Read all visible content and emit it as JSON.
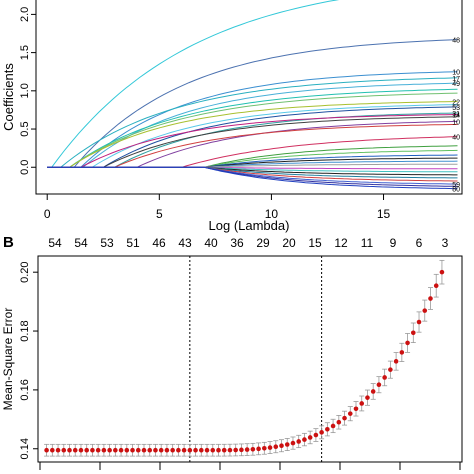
{
  "chart_data": [
    {
      "type": "line",
      "panel_label": "",
      "xlabel": "Log (Lambda)",
      "ylabel": "Coefficients",
      "x_ticks": [
        0,
        5,
        10,
        15
      ],
      "x_tick_labels": [
        "0",
        "5",
        "10",
        "15"
      ],
      "y_ticks": [
        0.0,
        0.5,
        1.0,
        1.5,
        2.0
      ],
      "y_tick_labels": [
        "0.0",
        "0.5",
        "1.0",
        "1.5",
        "2.0"
      ],
      "xlim": [
        -0.5,
        18.5
      ],
      "ylim": [
        -0.35,
        2.45
      ],
      "right_labels": [
        "48",
        "10",
        "17",
        "49",
        "22",
        "53",
        "31",
        "14",
        "10",
        "40",
        "59",
        "80"
      ],
      "series": [
        {
          "label": "",
          "color": "#33c8d8",
          "start": 0.2,
          "end": 2.38,
          "k": 0.16
        },
        {
          "label": "48",
          "color": "#4c72b0",
          "start": 1.2,
          "end": 1.67,
          "k": 0.2
        },
        {
          "label": "10",
          "color": "#3b8fd0",
          "start": 1.5,
          "end": 1.25,
          "k": 0.22
        },
        {
          "label": "17",
          "color": "#2ab0c0",
          "start": 0.6,
          "end": 1.17,
          "k": 0.2
        },
        {
          "label": "49",
          "color": "#48b0d8",
          "start": 1.6,
          "end": 1.1,
          "k": 0.22
        },
        {
          "label": "",
          "color": "#22c0b0",
          "start": 1.0,
          "end": 1.02,
          "k": 0.2
        },
        {
          "label": "",
          "color": "#70c070",
          "start": 1.0,
          "end": 0.97,
          "k": 0.2
        },
        {
          "label": "22",
          "color": "#a8c030",
          "start": 1.0,
          "end": 0.86,
          "k": 0.22
        },
        {
          "label": "",
          "color": "#58c8e8",
          "start": 2.0,
          "end": 0.82,
          "k": 0.22
        },
        {
          "label": "53",
          "color": "#2050a0",
          "start": 2.5,
          "end": 0.79,
          "k": 0.22
        },
        {
          "label": "31",
          "color": "#30a0a0",
          "start": 3.0,
          "end": 0.71,
          "k": 0.22
        },
        {
          "label": "14",
          "color": "#c02080",
          "start": 1.5,
          "end": 0.69,
          "k": 0.22
        },
        {
          "label": "",
          "color": "#404040",
          "start": 2.5,
          "end": 0.66,
          "k": 0.22
        },
        {
          "label": "10",
          "color": "#8040a0",
          "start": 4.0,
          "end": 0.6,
          "k": 0.22
        },
        {
          "label": "",
          "color": "#d04040",
          "start": 3.0,
          "end": 0.56,
          "k": 0.22
        },
        {
          "label": "40",
          "color": "#d03060",
          "start": 6.0,
          "end": 0.4,
          "k": 0.2
        },
        {
          "label": "",
          "color": "#40a040",
          "start": 7.0,
          "end": 0.28,
          "k": 0.25
        },
        {
          "label": "",
          "color": "#60c060",
          "start": 7.0,
          "end": 0.22,
          "k": 0.25
        },
        {
          "label": "",
          "color": "#2060c0",
          "start": 7.0,
          "end": 0.16,
          "k": 0.25
        },
        {
          "label": "",
          "color": "#202020",
          "start": 7.0,
          "end": 0.12,
          "k": 0.25
        },
        {
          "label": "",
          "color": "#4090d0",
          "start": 7.0,
          "end": 0.08,
          "k": 0.25
        },
        {
          "label": "",
          "color": "#a0a0a0",
          "start": 7.0,
          "end": 0.04,
          "k": 0.25
        },
        {
          "label": "",
          "color": "#c040c0",
          "start": 7.0,
          "end": -0.02,
          "k": 0.25
        },
        {
          "label": "",
          "color": "#40c0c0",
          "start": 7.0,
          "end": -0.06,
          "k": 0.25
        },
        {
          "label": "",
          "color": "#202020",
          "start": 7.0,
          "end": -0.1,
          "k": 0.25
        },
        {
          "label": "",
          "color": "#2080a0",
          "start": 7.0,
          "end": -0.14,
          "k": 0.25
        },
        {
          "label": "",
          "color": "#d04040",
          "start": 7.0,
          "end": -0.18,
          "k": 0.25
        },
        {
          "label": "59",
          "color": "#4060d0",
          "start": 7.0,
          "end": -0.22,
          "k": 0.25
        },
        {
          "label": "",
          "color": "#3030a0",
          "start": 7.0,
          "end": -0.25,
          "k": 0.25
        },
        {
          "label": "80",
          "color": "#2040c0",
          "start": 7.0,
          "end": -0.28,
          "k": 0.25
        }
      ]
    },
    {
      "type": "scatter",
      "panel_label": "B",
      "xlabel": "",
      "ylabel": "Mean-Square Error",
      "top_axis_labels": [
        "54",
        "54",
        "53",
        "51",
        "46",
        "43",
        "40",
        "36",
        "29",
        "20",
        "15",
        "12",
        "11",
        "9",
        "6",
        "3"
      ],
      "y_ticks": [
        0.14,
        0.16,
        0.18,
        0.2
      ],
      "y_tick_labels": [
        "0.14",
        "0.16",
        "0.18",
        "0.20"
      ],
      "xlim": [
        0,
        69
      ],
      "ylim": [
        0.1355,
        0.2055
      ],
      "n_points": 70,
      "baseline_mse": 0.1395,
      "error_half_width": 0.002,
      "curve_start_index": 28,
      "curve_end_value": 0.2,
      "vlines_at_index": [
        25,
        48
      ],
      "point_color": "#cc1111",
      "errorbar_color": "#999999"
    }
  ]
}
